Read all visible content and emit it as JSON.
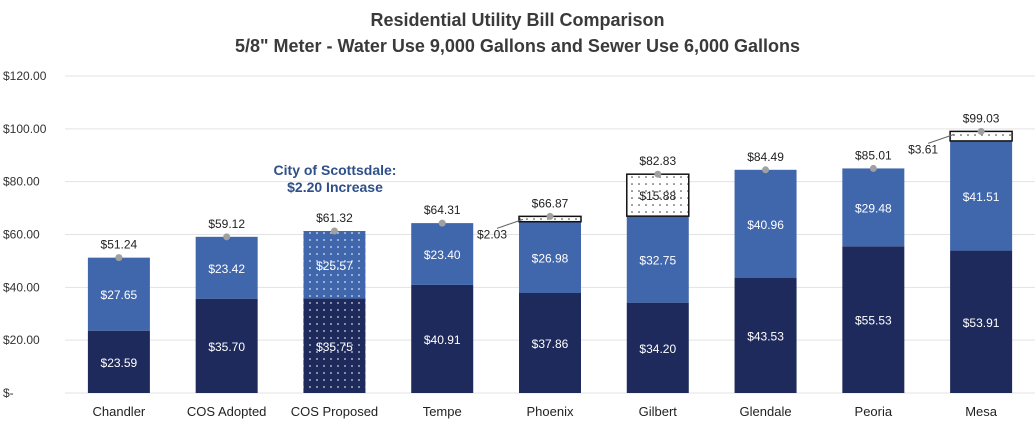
{
  "chart_data": {
    "type": "bar",
    "stacked": true,
    "title": "Residential Utility Bill Comparison",
    "subtitle": "5/8\" Meter - Water Use 9,000 Gallons and Sewer Use 6,000 Gallons",
    "categories": [
      "Chandler",
      "COS Adopted",
      "COS Proposed",
      "Tempe",
      "Phoenix",
      "Gilbert",
      "Glendale",
      "Peoria",
      "Mesa"
    ],
    "series": [
      {
        "values": [
          23.59,
          35.7,
          35.75,
          40.91,
          37.86,
          34.2,
          43.53,
          55.53,
          53.91
        ],
        "labels": [
          "$23.59",
          "$35.70",
          "$35.75",
          "$40.91",
          "$37.86",
          "$34.20",
          "$43.53",
          "$55.53",
          "$53.91"
        ],
        "color": "#1f2a5c"
      },
      {
        "values": [
          27.65,
          23.42,
          25.57,
          23.4,
          26.98,
          32.75,
          40.96,
          29.48,
          41.51
        ],
        "labels": [
          "$27.65",
          "$23.42",
          "$25.57",
          "$23.40",
          "$26.98",
          "$32.75",
          "$40.96",
          "$29.48",
          "$41.51"
        ],
        "color": "#4066ab"
      },
      {
        "values": [
          0,
          0,
          0,
          0,
          2.03,
          15.88,
          0,
          0,
          3.61
        ],
        "labels": [
          "",
          "",
          "",
          "",
          "$2.03",
          "$15.88",
          "",
          "",
          "$3.61"
        ],
        "color": "#ffffff"
      }
    ],
    "totals": [
      51.24,
      59.12,
      61.32,
      64.31,
      66.87,
      82.83,
      84.49,
      85.01,
      99.03
    ],
    "total_labels": [
      "$51.24",
      "$59.12",
      "$61.32",
      "$64.31",
      "$66.87",
      "$82.83",
      "$84.49",
      "$85.01",
      "$99.03"
    ],
    "highlight_category": "COS Proposed",
    "annotation": "City of Scottsdale: $2.20 Increase",
    "ylim": [
      0,
      120
    ],
    "yticks": [
      0,
      20,
      40,
      60,
      80,
      100,
      120
    ],
    "ytick_labels": [
      "$-",
      "$20.00",
      "$40.00",
      "$60.00",
      "$80.00",
      "$100.00",
      "$120.00"
    ],
    "grid": true,
    "xlabel": "",
    "ylabel": ""
  }
}
